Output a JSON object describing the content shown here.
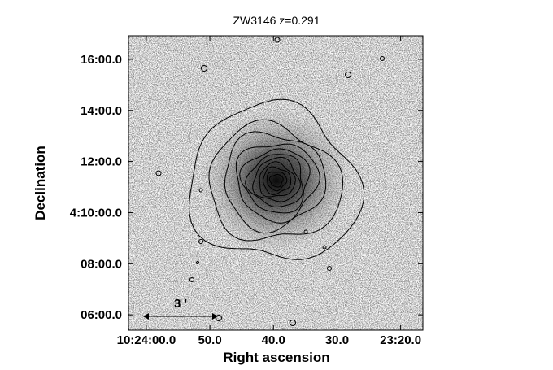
{
  "chart_data": {
    "type": "sky_image",
    "title": "ZW3146 z=0.291",
    "x_label": "Right ascension",
    "y_label": "Declination",
    "scale_bar_label": "3 '",
    "xlim": [
      62.8,
      16.5
    ],
    "ylim": [
      5.4,
      16.92
    ],
    "xticks": [
      {
        "value": 60,
        "label": "10:24:00.0"
      },
      {
        "value": 50,
        "label": "50.0"
      },
      {
        "value": 40,
        "label": "40.0"
      },
      {
        "value": 30,
        "label": "30.0"
      },
      {
        "value": 20,
        "label": "23:20.0"
      }
    ],
    "yticks": [
      {
        "value": 16,
        "label": "16:00.0"
      },
      {
        "value": 14,
        "label": "14:00.0"
      },
      {
        "value": 12,
        "label": "12:00.0"
      },
      {
        "value": 10,
        "label": "4:10:00.0"
      },
      {
        "value": 8,
        "label": "08:00.0"
      },
      {
        "value": 6,
        "label": "06:00.0"
      }
    ]
  }
}
